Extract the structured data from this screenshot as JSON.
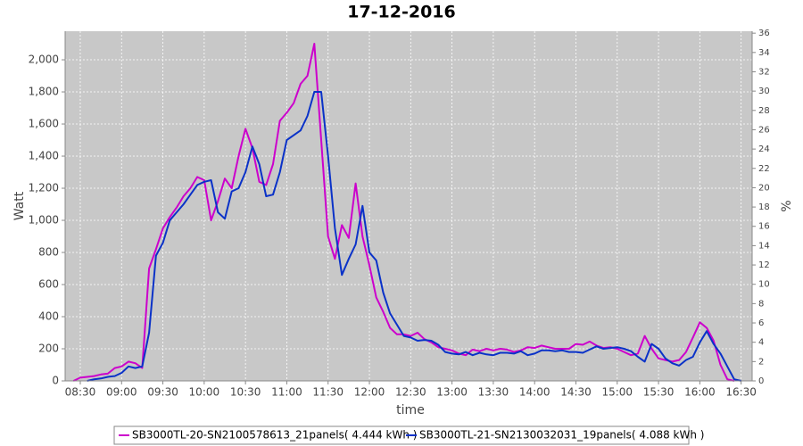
{
  "chart_data": {
    "type": "line",
    "title": "17-12-2016",
    "x_label": "time",
    "y_label": "Watt",
    "y2_label": "%",
    "x": [
      "08:25",
      "08:30",
      "08:35",
      "08:40",
      "08:45",
      "08:50",
      "08:55",
      "09:00",
      "09:05",
      "09:10",
      "09:15",
      "09:20",
      "09:25",
      "09:30",
      "09:35",
      "09:40",
      "09:45",
      "09:50",
      "09:55",
      "10:00",
      "10:05",
      "10:10",
      "10:15",
      "10:20",
      "10:25",
      "10:30",
      "10:35",
      "10:40",
      "10:45",
      "10:50",
      "10:55",
      "11:00",
      "11:05",
      "11:10",
      "11:15",
      "11:20",
      "11:25",
      "11:30",
      "11:35",
      "11:40",
      "11:45",
      "11:50",
      "11:55",
      "12:00",
      "12:05",
      "12:10",
      "12:15",
      "12:20",
      "12:25",
      "12:30",
      "12:35",
      "12:40",
      "12:45",
      "12:50",
      "12:55",
      "13:00",
      "13:05",
      "13:10",
      "13:15",
      "13:20",
      "13:25",
      "13:30",
      "13:35",
      "13:40",
      "13:45",
      "13:50",
      "13:55",
      "14:00",
      "14:05",
      "14:10",
      "14:15",
      "14:20",
      "14:25",
      "14:30",
      "14:35",
      "14:40",
      "14:45",
      "14:50",
      "14:55",
      "15:00",
      "15:05",
      "15:10",
      "15:15",
      "15:20",
      "15:25",
      "15:30",
      "15:35",
      "15:40",
      "15:45",
      "15:50",
      "15:55",
      "16:00",
      "16:05",
      "16:10",
      "16:15",
      "16:20",
      "16:25",
      "16:30"
    ],
    "series": [
      {
        "name": "SB3000TL-20-SN2100578613_21panels( 4.444 kWh )",
        "color": "#cc00cc",
        "values": [
          0,
          20,
          25,
          30,
          40,
          45,
          80,
          90,
          120,
          110,
          80,
          700,
          820,
          950,
          1020,
          1080,
          1150,
          1200,
          1270,
          1250,
          1000,
          1120,
          1260,
          1200,
          1400,
          1570,
          1450,
          1240,
          1220,
          1350,
          1620,
          1670,
          1730,
          1850,
          1900,
          2100,
          1500,
          900,
          760,
          970,
          890,
          1230,
          900,
          720,
          520,
          430,
          330,
          290,
          290,
          280,
          300,
          260,
          240,
          210,
          200,
          190,
          170,
          160,
          195,
          185,
          200,
          190,
          200,
          195,
          180,
          190,
          210,
          205,
          220,
          210,
          200,
          200,
          200,
          230,
          225,
          245,
          220,
          205,
          210,
          200,
          180,
          160,
          170,
          280,
          200,
          140,
          130,
          120,
          130,
          180,
          270,
          365,
          330,
          250,
          100,
          10,
          0,
          null
        ]
      },
      {
        "name": "SB3000TL-21-SN2130032031_19panels( 4.088 kWh )",
        "color": "#0a32c8",
        "values": [
          null,
          null,
          0,
          10,
          15,
          25,
          30,
          50,
          90,
          80,
          90,
          300,
          780,
          860,
          1000,
          1050,
          1100,
          1160,
          1220,
          1240,
          1250,
          1050,
          1010,
          1180,
          1200,
          1300,
          1460,
          1350,
          1150,
          1160,
          1300,
          1500,
          1530,
          1560,
          1650,
          1800,
          1800,
          1400,
          950,
          660,
          760,
          850,
          1090,
          800,
          750,
          550,
          420,
          350,
          280,
          270,
          250,
          255,
          250,
          225,
          180,
          170,
          165,
          180,
          160,
          175,
          165,
          160,
          175,
          175,
          170,
          185,
          160,
          170,
          190,
          190,
          185,
          190,
          180,
          180,
          175,
          195,
          215,
          200,
          205,
          210,
          200,
          185,
          150,
          120,
          230,
          200,
          140,
          110,
          95,
          130,
          150,
          240,
          310,
          230,
          170,
          90,
          10,
          0
        ]
      }
    ],
    "xlim": [
      "08:19",
      "16:38"
    ],
    "xticks": [
      "08:30",
      "09:00",
      "09:30",
      "10:00",
      "10:30",
      "11:00",
      "11:30",
      "12:00",
      "12:30",
      "13:00",
      "13:30",
      "14:00",
      "14:30",
      "15:00",
      "15:30",
      "16:00",
      "16:30"
    ],
    "ylim": [
      0,
      2178
    ],
    "yticks": [
      0,
      200,
      400,
      600,
      800,
      {
        "value": 1000,
        "label": "1,000"
      },
      {
        "value": 1200,
        "label": "1,200"
      },
      {
        "value": 1400,
        "label": "1,400"
      },
      {
        "value": 1600,
        "label": "1,600"
      },
      {
        "value": 1800,
        "label": "1,800"
      },
      {
        "value": 2000,
        "label": "2,000"
      }
    ],
    "y2lim": [
      0,
      36.2
    ],
    "y2ticks": [
      0,
      2,
      4,
      6,
      8,
      10,
      12,
      14,
      16,
      18,
      20,
      22,
      24,
      26,
      28,
      30,
      32,
      34,
      36
    ],
    "grid": true,
    "legend": "bottom"
  }
}
